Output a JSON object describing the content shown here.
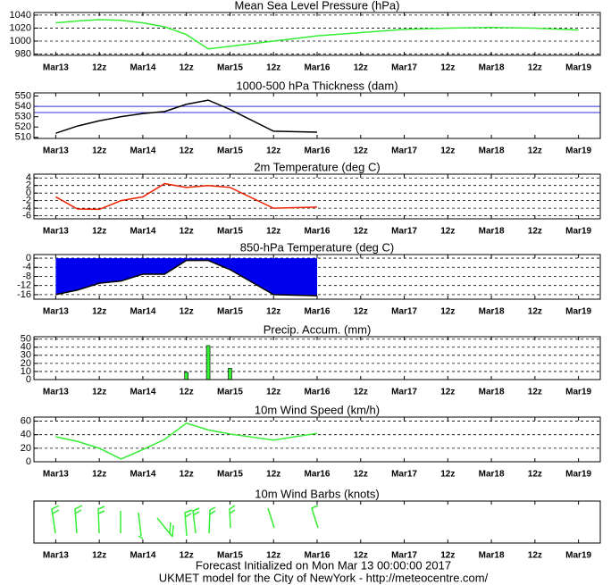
{
  "chart_data": [
    {
      "type": "line",
      "title": "Mean Sea Level Pressure (hPa)",
      "color": "#33ee33",
      "x": [
        0,
        6,
        12,
        18,
        24,
        30,
        36,
        42,
        48,
        54,
        60,
        66,
        72,
        84,
        96,
        108,
        120,
        132,
        144
      ],
      "values": [
        1028,
        1031,
        1033,
        1032,
        1028,
        1022,
        1010,
        988,
        992,
        996,
        1000,
        1004,
        1008,
        1013,
        1018,
        1020,
        1021,
        1020,
        1017
      ],
      "xlim": [
        -6,
        150
      ],
      "xticks": [
        {
          "value": 0,
          "label": "Mar13"
        },
        {
          "value": 12,
          "label": "12z"
        },
        {
          "value": 24,
          "label": "Mar14"
        },
        {
          "value": 36,
          "label": "12z"
        },
        {
          "value": 48,
          "label": "Mar15"
        },
        {
          "value": 60,
          "label": "12z"
        },
        {
          "value": 72,
          "label": "Mar16"
        },
        {
          "value": 84,
          "label": "12z"
        },
        {
          "value": 96,
          "label": "Mar17"
        },
        {
          "value": 108,
          "label": "12z"
        },
        {
          "value": 120,
          "label": "Mar18"
        },
        {
          "value": 132,
          "label": "12z"
        },
        {
          "value": 144,
          "label": "Mar19"
        }
      ],
      "ylim": [
        978,
        1044
      ],
      "yticks": [
        980,
        1000,
        1020,
        1040
      ],
      "grid": true
    },
    {
      "type": "line",
      "title": "1000-500 hPa Thickness (dam)",
      "color": "#000000",
      "x": [
        0,
        6,
        12,
        18,
        24,
        30,
        36,
        42,
        48,
        60,
        72
      ],
      "values": [
        514,
        521,
        526,
        530,
        533,
        535,
        542,
        546,
        537,
        516,
        515
      ],
      "hlines": [
        540,
        534
      ],
      "hline_color": "#3333dd",
      "xlim": [
        -6,
        150
      ],
      "xticks": [
        {
          "value": 0,
          "label": "Mar13"
        },
        {
          "value": 12,
          "label": "12z"
        },
        {
          "value": 24,
          "label": "Mar14"
        },
        {
          "value": 36,
          "label": "12z"
        },
        {
          "value": 48,
          "label": "Mar15"
        },
        {
          "value": 60,
          "label": "12z"
        },
        {
          "value": 72,
          "label": "Mar16"
        },
        {
          "value": 84,
          "label": "12z"
        },
        {
          "value": 96,
          "label": "Mar17"
        },
        {
          "value": 108,
          "label": "12z"
        },
        {
          "value": 120,
          "label": "Mar18"
        },
        {
          "value": 132,
          "label": "12z"
        },
        {
          "value": 144,
          "label": "Mar19"
        }
      ],
      "ylim": [
        509,
        553
      ],
      "yticks": [
        510,
        520,
        530,
        540,
        550
      ],
      "grid": false
    },
    {
      "type": "line",
      "title": "2m Temperature (deg C)",
      "color": "#ee2200",
      "x": [
        0,
        6,
        12,
        18,
        24,
        30,
        36,
        42,
        48,
        60,
        72
      ],
      "values": [
        -1,
        -4.2,
        -4.3,
        -2,
        -1,
        2.5,
        1.5,
        2,
        1.5,
        -4,
        -3.7
      ],
      "xlim": [
        -6,
        150
      ],
      "xticks": [
        {
          "value": 0,
          "label": "Mar13"
        },
        {
          "value": 12,
          "label": "12z"
        },
        {
          "value": 24,
          "label": "Mar14"
        },
        {
          "value": 36,
          "label": "12z"
        },
        {
          "value": 48,
          "label": "Mar15"
        },
        {
          "value": 60,
          "label": "12z"
        },
        {
          "value": 72,
          "label": "Mar16"
        },
        {
          "value": 84,
          "label": "12z"
        },
        {
          "value": 96,
          "label": "Mar17"
        },
        {
          "value": 108,
          "label": "12z"
        },
        {
          "value": 120,
          "label": "Mar18"
        },
        {
          "value": 132,
          "label": "12z"
        },
        {
          "value": 144,
          "label": "Mar19"
        }
      ],
      "ylim": [
        -6.8,
        5
      ],
      "yticks": [
        -6,
        -4,
        -2,
        0,
        2,
        4
      ],
      "grid": true
    },
    {
      "type": "area",
      "title": "850-hPa Temperature (deg C)",
      "color": "#0000ee",
      "line_color": "#000000",
      "x": [
        0,
        6,
        12,
        18,
        24,
        30,
        36,
        42,
        48,
        60,
        72
      ],
      "values": [
        -16,
        -14,
        -11,
        -10,
        -7,
        -7,
        -1,
        -1,
        -5,
        -16,
        -16.5
      ],
      "xlim": [
        -6,
        150
      ],
      "xticks": [
        {
          "value": 0,
          "label": "Mar13"
        },
        {
          "value": 12,
          "label": "12z"
        },
        {
          "value": 24,
          "label": "Mar14"
        },
        {
          "value": 36,
          "label": "12z"
        },
        {
          "value": 48,
          "label": "Mar15"
        },
        {
          "value": 60,
          "label": "12z"
        },
        {
          "value": 72,
          "label": "Mar16"
        },
        {
          "value": 84,
          "label": "12z"
        },
        {
          "value": 96,
          "label": "Mar17"
        },
        {
          "value": 108,
          "label": "12z"
        },
        {
          "value": 120,
          "label": "Mar18"
        },
        {
          "value": 132,
          "label": "12z"
        },
        {
          "value": 144,
          "label": "Mar19"
        }
      ],
      "ylim": [
        -18,
        1.6
      ],
      "yticks": [
        -16,
        -12,
        -8,
        -4,
        0
      ],
      "grid": true
    },
    {
      "type": "bar",
      "title": "Precip. Accum. (mm)",
      "color": "#33ee33",
      "x": [
        36,
        42,
        48
      ],
      "values": [
        9,
        42,
        14
      ],
      "xlim": [
        -6,
        150
      ],
      "xticks": [
        {
          "value": 0,
          "label": "Mar13"
        },
        {
          "value": 12,
          "label": "12z"
        },
        {
          "value": 24,
          "label": "Mar14"
        },
        {
          "value": 36,
          "label": "12z"
        },
        {
          "value": 48,
          "label": "Mar15"
        },
        {
          "value": 60,
          "label": "12z"
        },
        {
          "value": 72,
          "label": "Mar16"
        },
        {
          "value": 84,
          "label": "12z"
        },
        {
          "value": 96,
          "label": "Mar17"
        },
        {
          "value": 108,
          "label": "12z"
        },
        {
          "value": 120,
          "label": "Mar18"
        },
        {
          "value": 132,
          "label": "12z"
        },
        {
          "value": 144,
          "label": "Mar19"
        }
      ],
      "ylim": [
        0,
        53
      ],
      "yticks": [
        0,
        10,
        20,
        30,
        40,
        50
      ],
      "grid": true
    },
    {
      "type": "line",
      "title": "10m Wind Speed (km/h)",
      "color": "#33ee33",
      "x": [
        0,
        6,
        12,
        18,
        24,
        30,
        36,
        42,
        48,
        60,
        72
      ],
      "values": [
        37,
        30,
        20,
        4,
        18,
        33,
        57,
        47,
        41,
        32,
        42
      ],
      "xlim": [
        -6,
        150
      ],
      "xticks": [
        {
          "value": 0,
          "label": "Mar13"
        },
        {
          "value": 12,
          "label": "12z"
        },
        {
          "value": 24,
          "label": "Mar14"
        },
        {
          "value": 36,
          "label": "12z"
        },
        {
          "value": 48,
          "label": "Mar15"
        },
        {
          "value": 60,
          "label": "12z"
        },
        {
          "value": 72,
          "label": "Mar16"
        },
        {
          "value": 84,
          "label": "12z"
        },
        {
          "value": 96,
          "label": "Mar17"
        },
        {
          "value": 108,
          "label": "12z"
        },
        {
          "value": 120,
          "label": "Mar18"
        },
        {
          "value": 132,
          "label": "12z"
        },
        {
          "value": 144,
          "label": "Mar19"
        }
      ],
      "ylim": [
        0,
        66
      ],
      "yticks": [
        0,
        20,
        40,
        60
      ],
      "grid": true
    },
    {
      "type": "barbs",
      "title": "10m Wind Barbs  (knots)",
      "xlim": [
        -6,
        150
      ],
      "xticks": [
        {
          "value": 0,
          "label": "Mar13"
        },
        {
          "value": 12,
          "label": "12z"
        },
        {
          "value": 24,
          "label": "Mar14"
        },
        {
          "value": 36,
          "label": "12z"
        },
        {
          "value": 48,
          "label": "Mar15"
        },
        {
          "value": 60,
          "label": "12z"
        },
        {
          "value": 72,
          "label": "Mar16"
        },
        {
          "value": 84,
          "label": "12z"
        },
        {
          "value": 96,
          "label": "Mar17"
        },
        {
          "value": 108,
          "label": "12z"
        },
        {
          "value": 120,
          "label": "Mar18"
        },
        {
          "value": 132,
          "label": "12z"
        },
        {
          "value": 144,
          "label": "Mar19"
        }
      ]
    }
  ],
  "footer": {
    "line1": "Forecast Initialized on Mon Mar 13 00:00:00 2017",
    "line2": "UKMET model for the City of NewYork - http://meteocentre.com/"
  }
}
